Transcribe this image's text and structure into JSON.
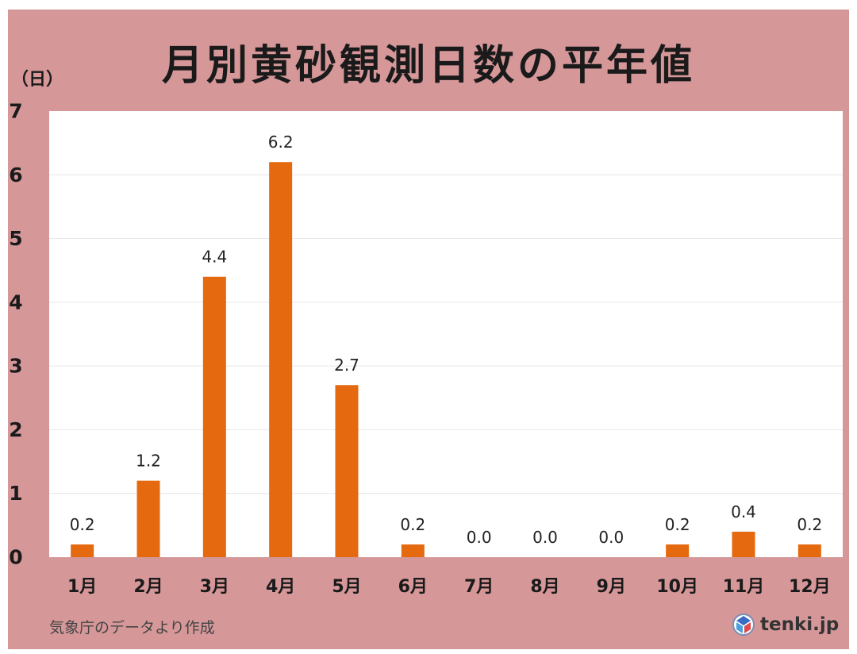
{
  "title": "月別黄砂観測日数の平年値",
  "unit_label": "（日）",
  "source": "気象庁のデータより作成",
  "logo": {
    "text": "tenki.jp",
    "icon": "tenki-logo-icon"
  },
  "colors": {
    "bar": "#e5690e",
    "panel": "#d69799",
    "plot": "#ffffff",
    "grid": "#e6e6e6"
  },
  "chart_data": {
    "type": "bar",
    "title": "月別黄砂観測日数の平年値",
    "categories": [
      "1月",
      "2月",
      "3月",
      "4月",
      "5月",
      "6月",
      "7月",
      "8月",
      "9月",
      "10月",
      "11月",
      "12月"
    ],
    "values": [
      0.2,
      1.2,
      4.4,
      6.2,
      2.7,
      0.2,
      0.0,
      0.0,
      0.0,
      0.2,
      0.4,
      0.2
    ],
    "data_labels": [
      "0.2",
      "1.2",
      "4.4",
      "6.2",
      "2.7",
      "0.2",
      "0.0",
      "0.0",
      "0.0",
      "0.2",
      "0.4",
      "0.2"
    ],
    "ylabel": "（日）",
    "xlabel": "",
    "ylim": [
      0,
      7
    ],
    "yticks": [
      0,
      1,
      2,
      3,
      4,
      5,
      6,
      7
    ],
    "grid": true,
    "legend": "none"
  }
}
